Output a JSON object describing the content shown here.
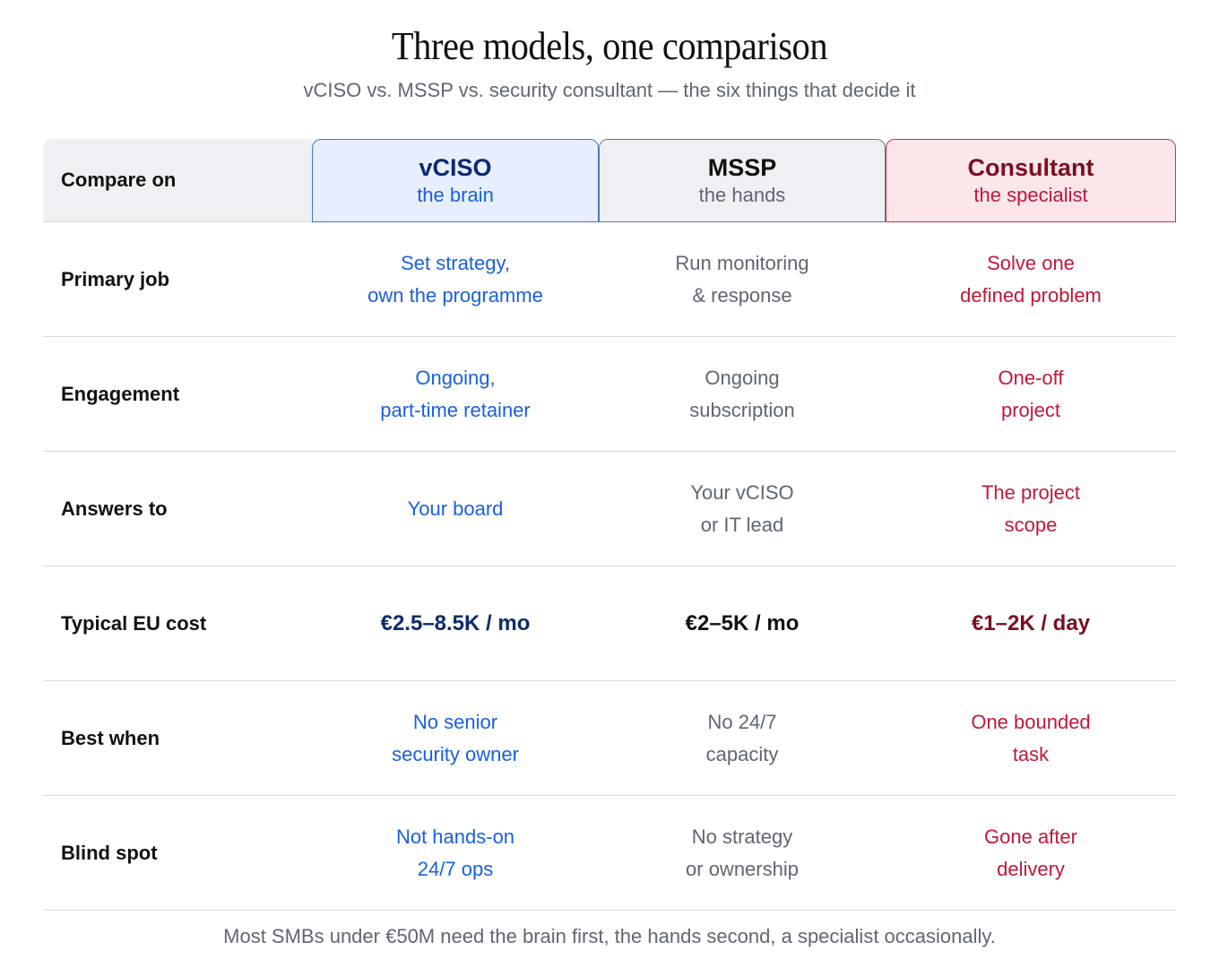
{
  "title": "Three models, one comparison",
  "subtitle": "vCISO vs. MSSP vs. security consultant — the six things that decide it",
  "header": {
    "compare_label": "Compare on",
    "columns": [
      {
        "name": "vCISO",
        "tagline": "the brain"
      },
      {
        "name": "MSSP",
        "tagline": "the hands"
      },
      {
        "name": "Consultant",
        "tagline": "the specialist"
      }
    ]
  },
  "rows": [
    {
      "label": "Primary job",
      "vciso": [
        "Set strategy,",
        "own the programme"
      ],
      "mssp": [
        "Run monitoring",
        "& response"
      ],
      "consultant": [
        "Solve one",
        "defined problem"
      ]
    },
    {
      "label": "Engagement",
      "vciso": [
        "Ongoing,",
        "part-time retainer"
      ],
      "mssp": [
        "Ongoing",
        "subscription"
      ],
      "consultant": [
        "One-off",
        "project"
      ]
    },
    {
      "label": "Answers to",
      "vciso": [
        "Your board"
      ],
      "mssp": [
        "Your vCISO",
        "or IT lead"
      ],
      "consultant": [
        "The project",
        "scope"
      ]
    },
    {
      "label": "Typical EU cost",
      "vciso": [
        "€2.5–8.5K / mo"
      ],
      "mssp": [
        "€2–5K / mo"
      ],
      "consultant": [
        "€1–2K / day"
      ]
    },
    {
      "label": "Best when",
      "vciso": [
        "No senior",
        "security owner"
      ],
      "mssp": [
        "No 24/7",
        "capacity"
      ],
      "consultant": [
        "One bounded",
        "task"
      ]
    },
    {
      "label": "Blind spot",
      "vciso": [
        "Not hands-on",
        "24/7 ops"
      ],
      "mssp": [
        "No strategy",
        "or ownership"
      ],
      "consultant": [
        "Gone after",
        "delivery"
      ]
    }
  ],
  "footer": "Most SMBs under €50M need the brain first, the hands second, a specialist occasionally.",
  "colors": {
    "vciso_accent": "#1a5fe0",
    "mssp_accent": "#5f6673",
    "consultant_accent": "#c0183a"
  }
}
